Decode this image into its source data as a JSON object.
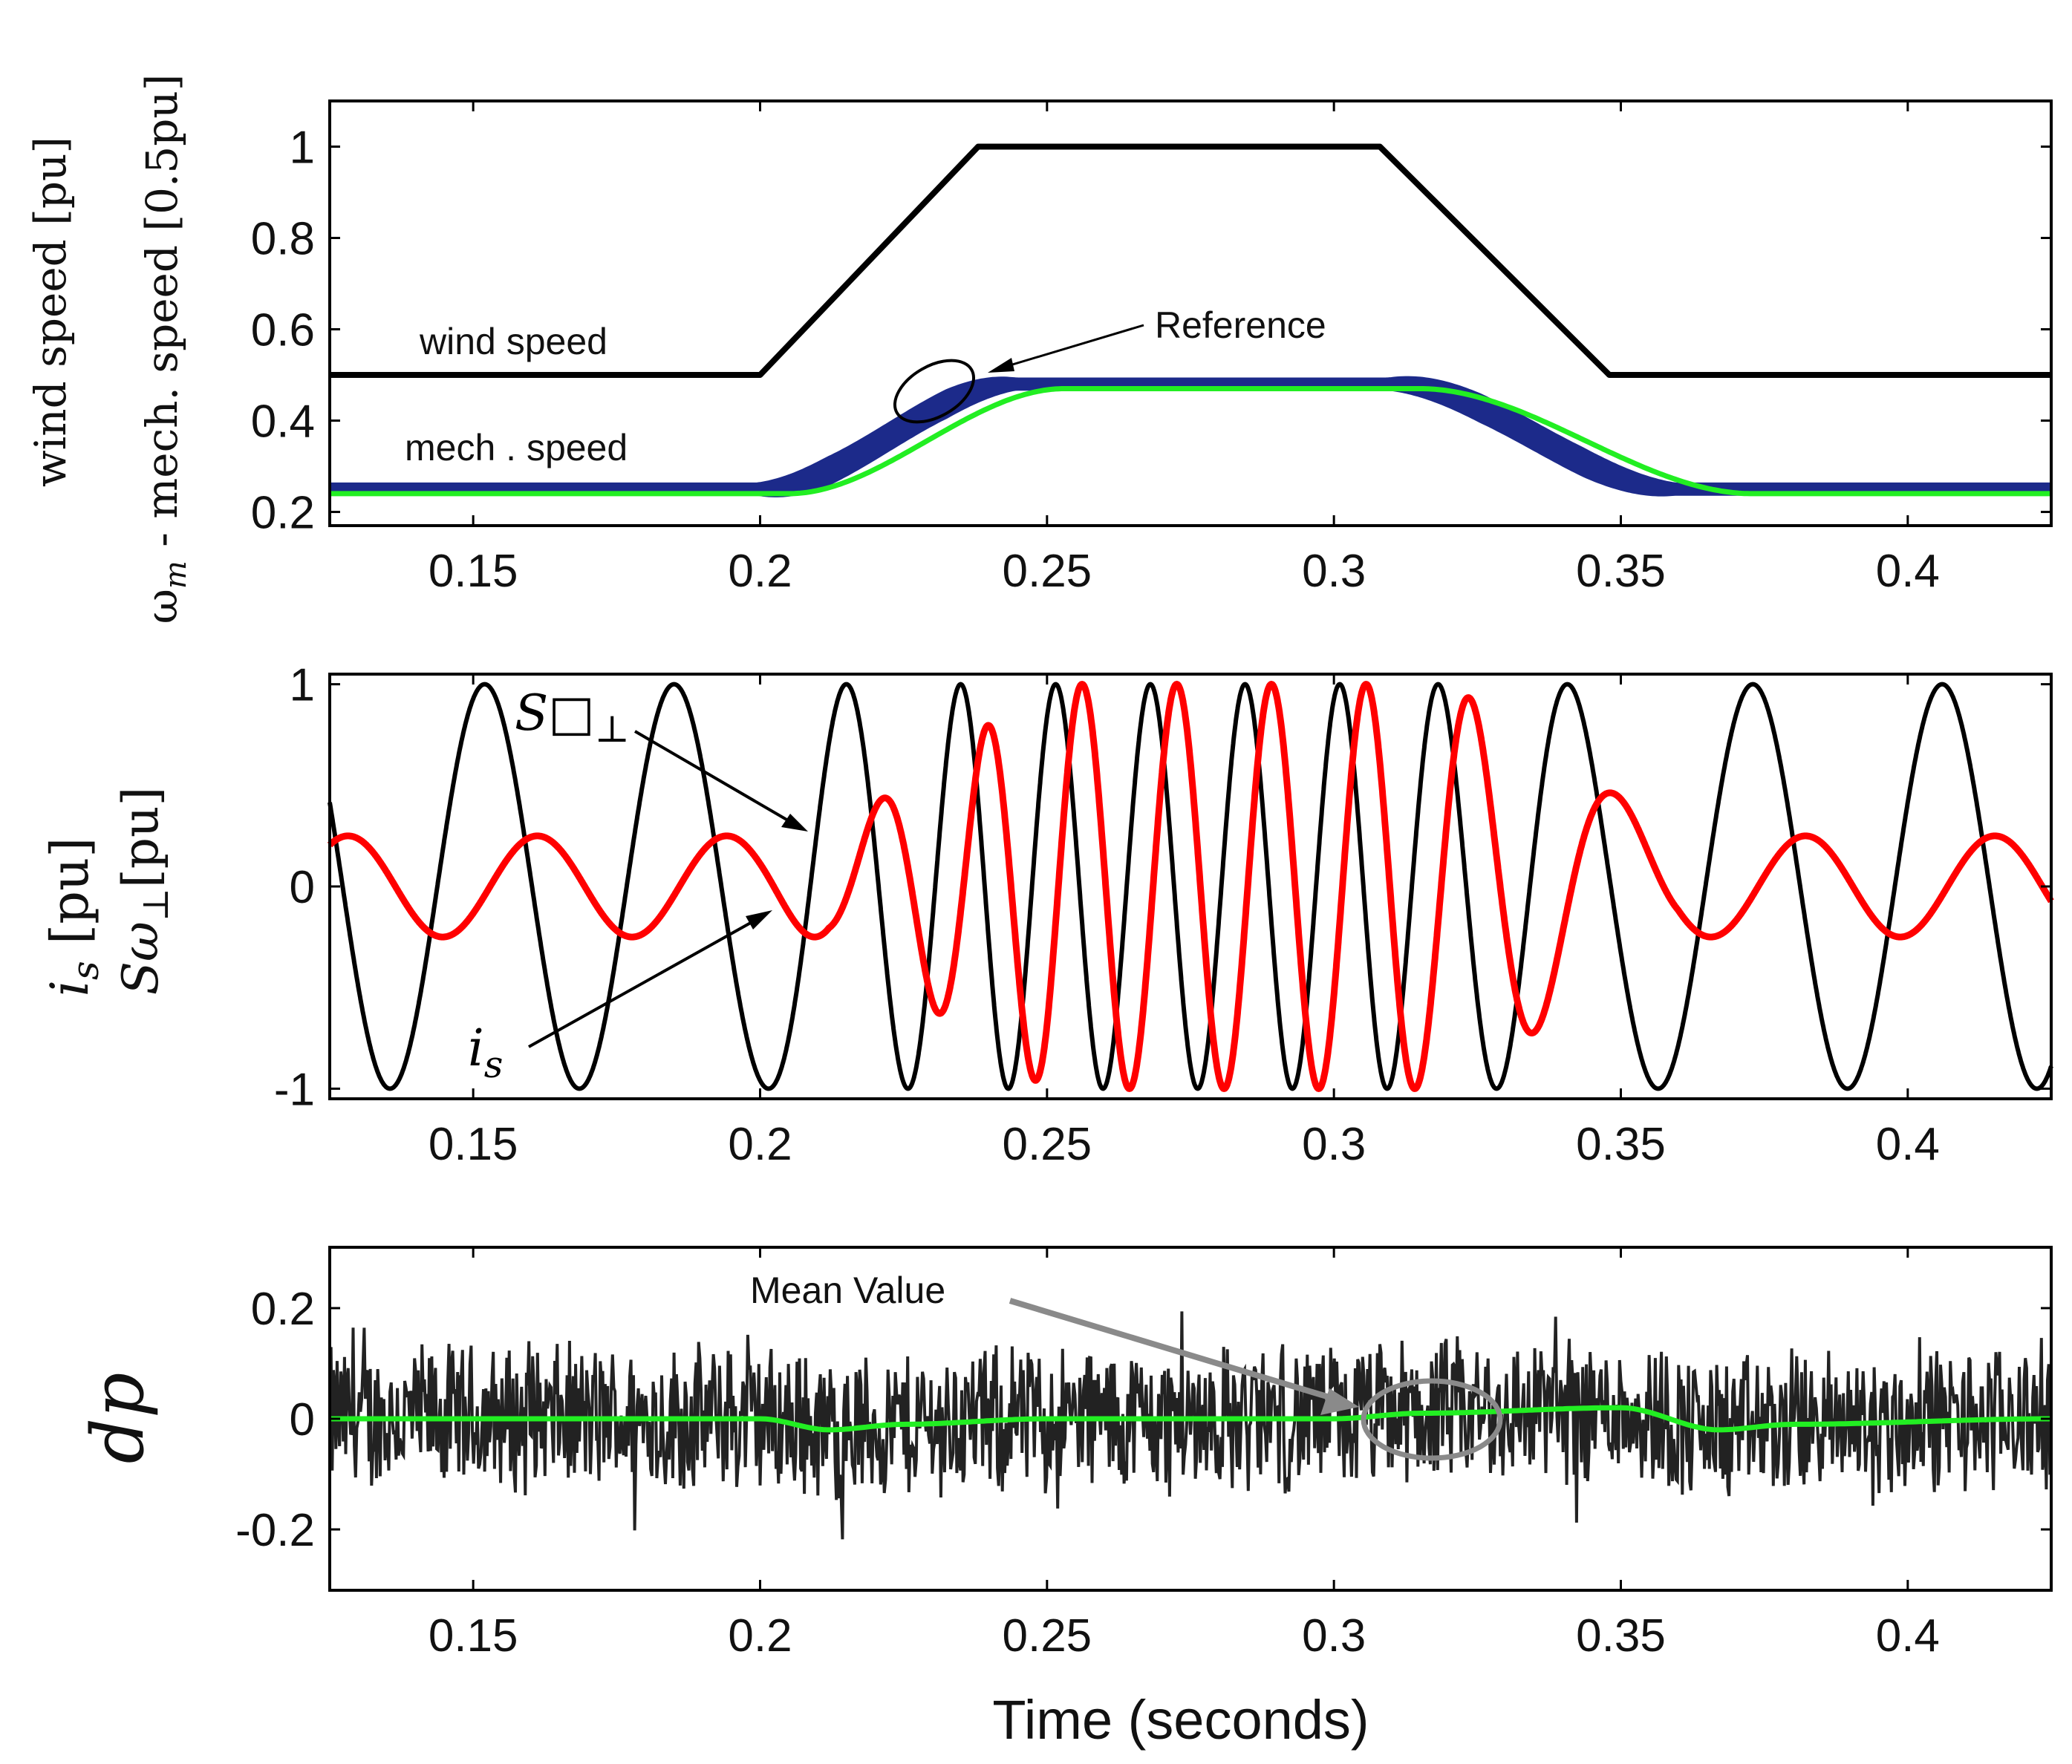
{
  "chart_data": [
    {
      "type": "line",
      "xlim": [
        0.125,
        0.425
      ],
      "ylim": [
        0.17,
        1.1
      ],
      "xticks": [
        0.15,
        0.2,
        0.25,
        0.3,
        0.35,
        0.4
      ],
      "xtick_labels": [
        "0.15",
        "0.2",
        "0.25",
        "0.3",
        "0.35",
        "0.4"
      ],
      "yticks": [
        0.2,
        0.4,
        0.6,
        0.8,
        1.0
      ],
      "ytick_labels": [
        "0.2",
        "0.4",
        "0.6",
        "0.8",
        "1"
      ],
      "ylabel_line1": "wind speed  [pu]",
      "ylabel_line2_symbol": "ω",
      "ylabel_line2_sub": "m",
      "ylabel_line2_rest": " - mech. speed  [0.5pu]",
      "annotations": {
        "wind": "wind  speed",
        "mech": "mech .  speed",
        "reference": "Reference"
      },
      "colors": {
        "wind": "#000000",
        "mech": "#1c2a8a",
        "reference": "#22ee22",
        "annotation": "#000000"
      },
      "series": [
        {
          "name": "wind speed",
          "x": [
            0.125,
            0.2,
            0.238,
            0.308,
            0.348,
            0.425
          ],
          "y": [
            0.5,
            0.5,
            1.0,
            1.0,
            0.5,
            0.5
          ]
        },
        {
          "name": "mech. speed",
          "x": [
            0.125,
            0.2,
            0.245,
            0.31,
            0.36,
            0.425
          ],
          "y": [
            0.25,
            0.25,
            0.48,
            0.48,
            0.25,
            0.25
          ]
        },
        {
          "name": "Reference",
          "x": [
            0.125,
            0.205,
            0.253,
            0.315,
            0.373,
            0.425
          ],
          "y": [
            0.24,
            0.24,
            0.47,
            0.47,
            0.24,
            0.24
          ]
        }
      ]
    },
    {
      "type": "line",
      "xlim": [
        0.125,
        0.425
      ],
      "ylim": [
        -1.05,
        1.05
      ],
      "xticks": [
        0.15,
        0.2,
        0.25,
        0.3,
        0.35,
        0.4
      ],
      "xtick_labels": [
        "0.15",
        "0.2",
        "0.25",
        "0.3",
        "0.35",
        "0.4"
      ],
      "yticks": [
        -1,
        0,
        1
      ],
      "ytick_labels": [
        "-1",
        "0",
        "1"
      ],
      "ylabel_line1_sym": "i",
      "ylabel_line1_sub": "s",
      "ylabel_line1_rest": " [pu]",
      "ylabel_line2_sym": "Sω",
      "ylabel_line2_sub": "⊥",
      "ylabel_line2_rest": "[pu]",
      "annotations": {
        "s_label": "S□",
        "s_sub": "⊥",
        "is_sym": "i",
        "is_sub": "s"
      },
      "colors": {
        "s_perp": "#000000",
        "is": "#ff0000"
      },
      "series": [
        {
          "name": "Sω⊥",
          "amplitude": 1.0,
          "phase_note": "peak at 0.152",
          "wind_profile": "same as wind speed"
        },
        {
          "name": "i_s",
          "amplitude_low": 0.25,
          "amplitude_high": 1.0,
          "peak_at": 0.242
        }
      ]
    },
    {
      "type": "line",
      "xlim": [
        0.125,
        0.425
      ],
      "ylim": [
        -0.31,
        0.31
      ],
      "xticks": [
        0.15,
        0.2,
        0.25,
        0.3,
        0.35,
        0.4
      ],
      "xtick_labels": [
        "0.15",
        "0.2",
        "0.25",
        "0.3",
        "0.35",
        "0.4"
      ],
      "yticks": [
        -0.2,
        0,
        0.2
      ],
      "ytick_labels": [
        "-0.2",
        "0",
        "0.2"
      ],
      "ylabel": "dp",
      "xlabel": "Time (seconds)",
      "annotations": {
        "mean": "Mean Value"
      },
      "colors": {
        "dp": "#222222",
        "mean": "#22ee22",
        "annotation": "#8a8a8a"
      },
      "series": [
        {
          "name": "dp",
          "noise_amplitude": 0.15
        },
        {
          "name": "Mean Value",
          "x": [
            0.125,
            0.2,
            0.212,
            0.225,
            0.25,
            0.3,
            0.315,
            0.35,
            0.367,
            0.38,
            0.425
          ],
          "y": [
            0.0,
            0.0,
            -0.02,
            -0.01,
            0.0,
            0.0,
            0.01,
            0.02,
            -0.02,
            -0.01,
            0.0
          ]
        }
      ]
    }
  ]
}
